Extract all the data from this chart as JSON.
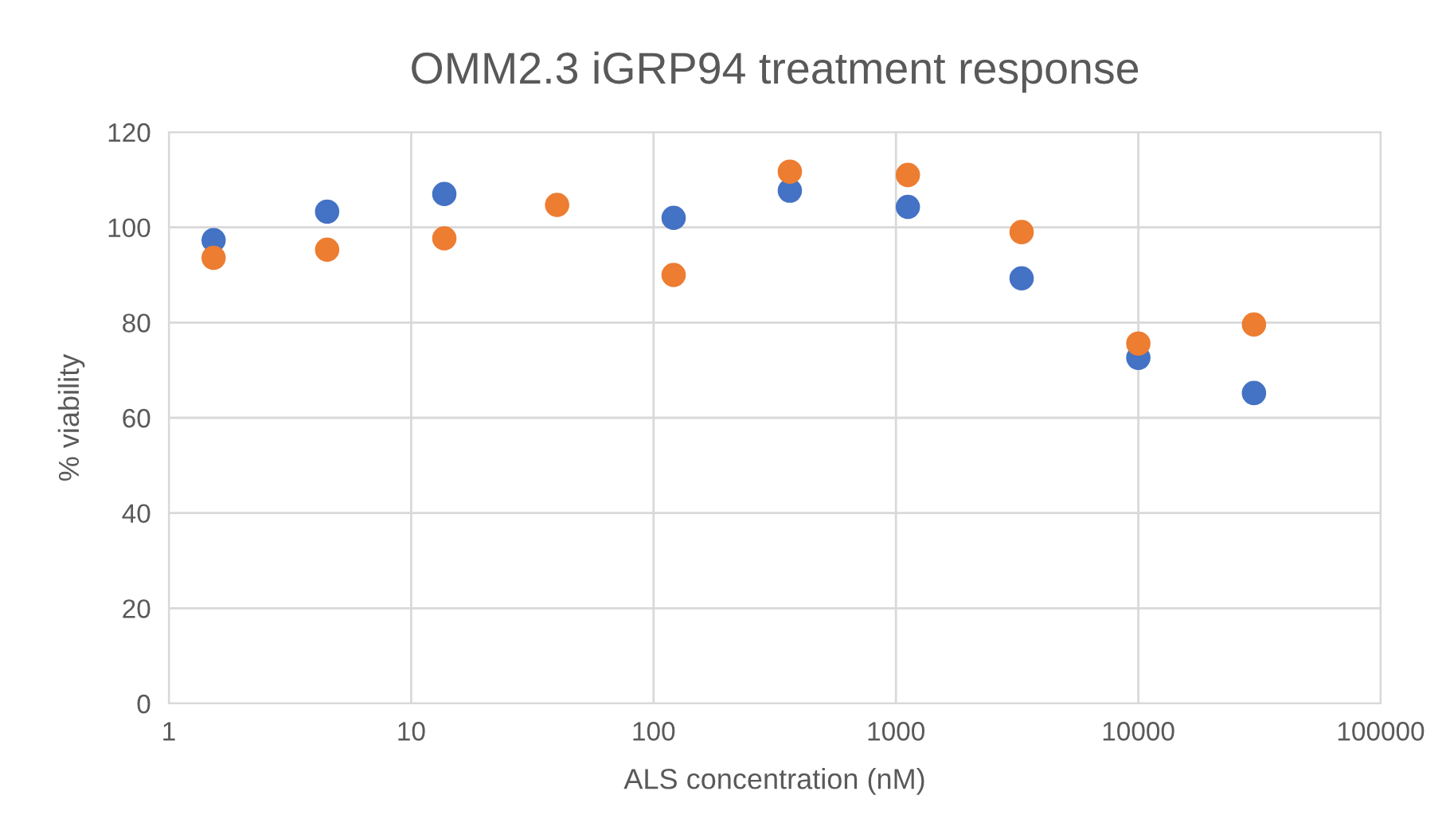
{
  "chart_data": {
    "type": "scatter",
    "title": "OMM2.3 iGRP94 treatment response",
    "xlabel": "ALS concentration (nM)",
    "ylabel": "% viability",
    "x": [
      1.53,
      4.5,
      13.7,
      40,
      121,
      365,
      1120,
      3300,
      10000,
      30000
    ],
    "series": [
      {
        "color": "#4472c4",
        "values": [
          97.3,
          103.3,
          107,
          null,
          102,
          107.7,
          104.3,
          89.3,
          72.6,
          65.2
        ]
      },
      {
        "color": "#ed7d31",
        "values": [
          93.6,
          95.3,
          97.7,
          104.7,
          90,
          111.7,
          111,
          99,
          75.6,
          79.6
        ]
      }
    ],
    "log": "x",
    "xlim": [
      1,
      100000
    ],
    "xticks": [
      1,
      10,
      100,
      1000,
      10000,
      100000
    ],
    "ylim": [
      0,
      120
    ],
    "yticks": [
      0,
      20,
      40,
      60,
      80,
      100,
      120
    ],
    "grid": true,
    "marker": "circle",
    "legend": false
  }
}
